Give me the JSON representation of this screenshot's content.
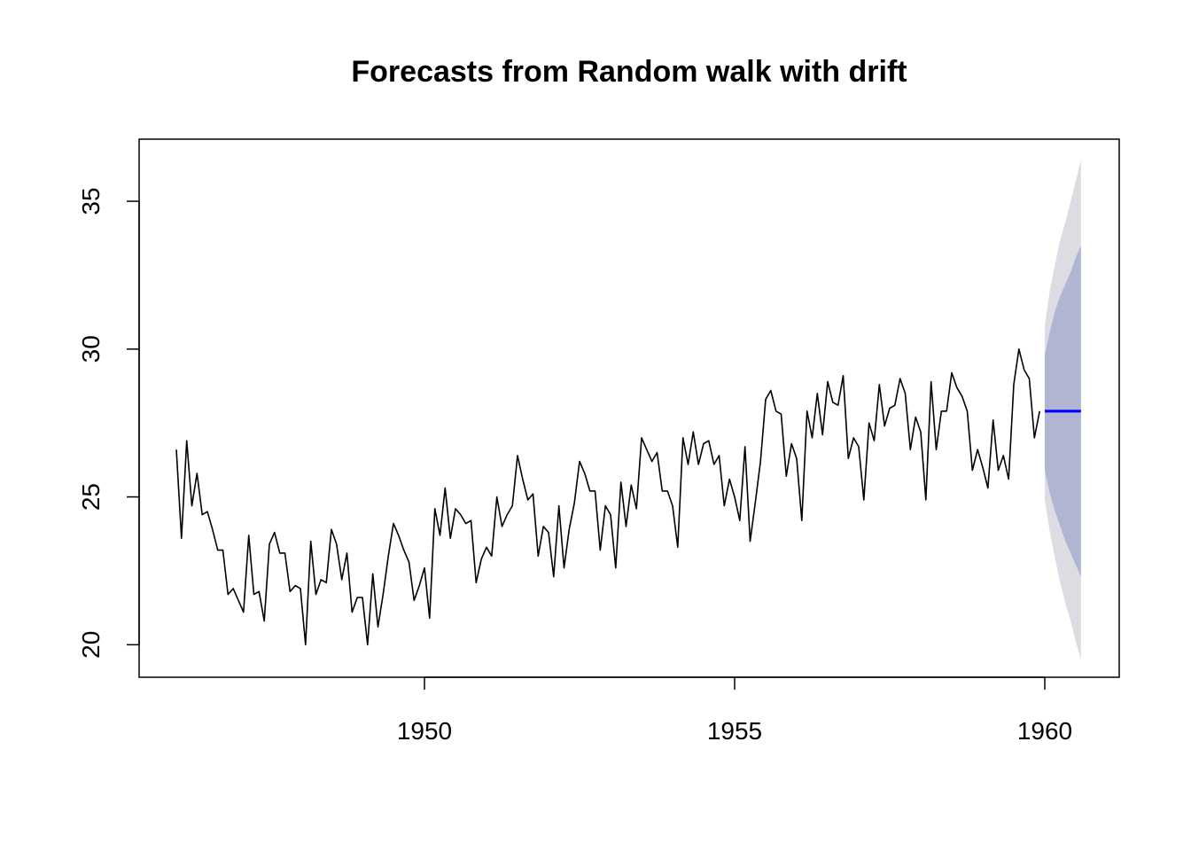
{
  "chart_data": {
    "type": "line",
    "title": "Forecasts from Random walk with drift",
    "xlabel": "",
    "ylabel": "",
    "xlim": [
      1945.4,
      1961.2
    ],
    "ylim": [
      18.9,
      37.1
    ],
    "x_ticks": [
      1950,
      1955,
      1960
    ],
    "y_ticks": [
      20,
      25,
      30,
      35
    ],
    "x_tick_labels": [
      "1950",
      "1955",
      "1960"
    ],
    "y_tick_labels": [
      "20",
      "25",
      "30",
      "35"
    ],
    "grid": false,
    "legend": "none",
    "colors": {
      "series": "#000000",
      "forecast_mean": "#0000ff",
      "interval_80": "#b0b6d2",
      "interval_95": "#dcdce2",
      "axis": "#000000"
    },
    "series": [
      {
        "start": 1946.0,
        "step": 0.083333,
        "values": [
          26.6,
          23.6,
          26.9,
          24.7,
          25.8,
          24.4,
          24.5,
          23.9,
          23.2,
          23.2,
          21.7,
          21.9,
          21.5,
          21.1,
          23.7,
          21.7,
          21.8,
          20.8,
          23.4,
          23.8,
          23.1,
          23.1,
          21.8,
          22.0,
          21.9,
          20.0,
          23.5,
          21.7,
          22.2,
          22.1,
          23.9,
          23.4,
          22.2,
          23.1,
          21.1,
          21.6,
          21.6,
          20.0,
          22.4,
          20.6,
          21.7,
          23.0,
          24.1,
          23.7,
          23.2,
          22.8,
          21.5,
          22.0,
          22.6,
          20.9,
          24.6,
          23.7,
          25.3,
          23.6,
          24.6,
          24.4,
          24.1,
          24.2,
          22.1,
          22.9,
          23.3,
          23.0,
          25.0,
          24.0,
          24.4,
          24.7,
          26.4,
          25.6,
          24.9,
          25.1,
          23.0,
          24.0,
          23.8,
          22.3,
          24.7,
          22.6,
          23.9,
          24.8,
          26.2,
          25.8,
          25.2,
          25.2,
          23.2,
          24.7,
          24.4,
          22.6,
          25.5,
          24.0,
          25.4,
          24.6,
          27.0,
          26.6,
          26.2,
          26.5,
          25.2,
          25.2,
          24.7,
          23.3,
          27.0,
          26.1,
          27.2,
          26.1,
          26.8,
          26.9,
          26.1,
          26.4,
          24.7,
          25.6,
          25.0,
          24.2,
          26.7,
          23.5,
          24.8,
          26.2,
          28.3,
          28.6,
          27.9,
          27.8,
          25.7,
          26.8,
          26.3,
          24.2,
          27.9,
          27.0,
          28.5,
          27.1,
          28.9,
          28.2,
          28.1,
          29.1,
          26.3,
          27.0,
          26.7,
          24.9,
          27.5,
          26.9,
          28.8,
          27.4,
          28.0,
          28.1,
          29.0,
          28.5,
          26.6,
          27.7,
          27.2,
          24.9,
          28.9,
          26.6,
          27.9,
          27.9,
          29.2,
          28.7,
          28.4,
          27.9,
          25.9,
          26.6,
          26.0,
          25.3,
          27.6,
          25.9,
          26.4,
          25.6,
          28.8,
          30.0,
          29.3,
          29.0,
          27.0,
          27.9
        ]
      }
    ],
    "forecast": {
      "start": 1960.0,
      "step": 0.083333,
      "mean": [
        27.9,
        27.9,
        27.9,
        27.9,
        27.9,
        27.9,
        27.9,
        27.9
      ],
      "lower_80": [
        25.9,
        25.1,
        24.5,
        24.0,
        23.5,
        23.1,
        22.7,
        22.3
      ],
      "upper_80": [
        29.8,
        30.6,
        31.3,
        31.8,
        32.2,
        32.6,
        33.1,
        33.5
      ],
      "lower_95": [
        24.9,
        23.8,
        22.9,
        22.1,
        21.4,
        20.8,
        20.1,
        19.5
      ],
      "upper_95": [
        30.8,
        32.0,
        32.9,
        33.7,
        34.3,
        35.0,
        35.7,
        36.4
      ]
    }
  }
}
